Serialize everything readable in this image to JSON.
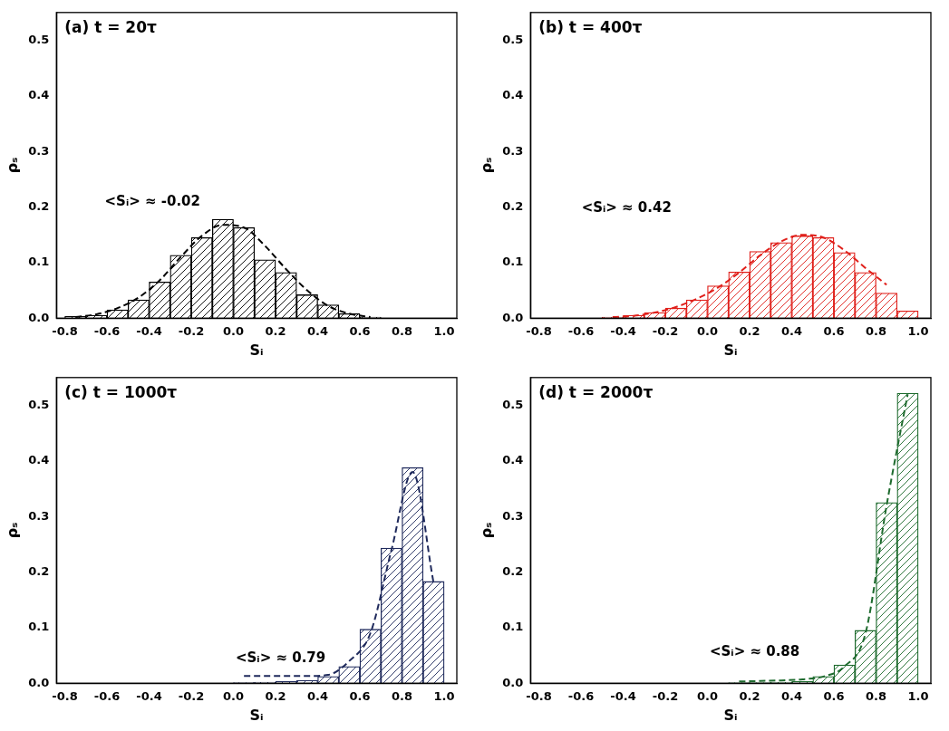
{
  "chart_data": [
    {
      "type": "histogram",
      "title": "(a) t = 20τ",
      "x_label": "Sᵢ",
      "y_label": "ρₛ",
      "annotation": "<Sᵢ> ≈ -0.02",
      "color": "#000000",
      "grid": false,
      "xlim": [
        -0.84,
        1.06
      ],
      "xticks": [
        -0.8,
        -0.6,
        -0.4,
        -0.2,
        {
          "value": 0,
          "label": "0.0"
        },
        0.2,
        0.4,
        0.6,
        0.8,
        {
          "value": 1,
          "label": "1.0"
        }
      ],
      "ylim": [
        0,
        0.55
      ],
      "yticks": [
        {
          "value": 0,
          "label": "0.0"
        },
        0.1,
        0.2,
        0.3,
        0.4,
        0.5
      ],
      "bins": [
        -0.8,
        -0.7,
        -0.6,
        -0.5,
        -0.4,
        -0.3,
        -0.2,
        -0.1,
        0.0,
        0.1,
        0.2,
        0.3,
        0.4,
        0.5,
        0.6,
        0.7
      ],
      "values": [
        0.003,
        0.005,
        0.015,
        0.033,
        0.065,
        0.113,
        0.145,
        0.178,
        0.163,
        0.105,
        0.082,
        0.042,
        0.024,
        0.008,
        0.002
      ],
      "fit": {
        "line_style": "dashed",
        "x": [
          -0.75,
          -0.65,
          -0.55,
          -0.45,
          -0.35,
          -0.25,
          -0.15,
          -0.05,
          0.05,
          0.15,
          0.25,
          0.35,
          0.45,
          0.55,
          0.65
        ],
        "values": [
          0.002,
          0.007,
          0.018,
          0.037,
          0.068,
          0.11,
          0.148,
          0.168,
          0.163,
          0.13,
          0.088,
          0.05,
          0.022,
          0.008,
          0.002
        ]
      }
    },
    {
      "type": "histogram",
      "title": "(b) t = 400τ",
      "x_label": "Sᵢ",
      "y_label": "ρₛ",
      "annotation": "<Sᵢ> ≈ 0.42",
      "color": "#e0201b",
      "grid": false,
      "xlim": [
        -0.84,
        1.06
      ],
      "xticks": [
        -0.8,
        -0.6,
        -0.4,
        -0.2,
        {
          "value": 0,
          "label": "0.0"
        },
        0.2,
        0.4,
        0.6,
        0.8,
        {
          "value": 1,
          "label": "1.0"
        }
      ],
      "ylim": [
        0,
        0.55
      ],
      "yticks": [
        {
          "value": 0,
          "label": "0.0"
        },
        0.1,
        0.2,
        0.3,
        0.4,
        0.5
      ],
      "bins": [
        -0.5,
        -0.4,
        -0.3,
        -0.2,
        -0.1,
        0.0,
        0.1,
        0.2,
        0.3,
        0.4,
        0.5,
        0.6,
        0.7,
        0.8,
        0.9,
        1.0
      ],
      "values": [
        0.002,
        0.005,
        0.01,
        0.018,
        0.033,
        0.058,
        0.083,
        0.12,
        0.136,
        0.148,
        0.145,
        0.118,
        0.082,
        0.045,
        0.013
      ],
      "fit": {
        "line_style": "dashed",
        "x": [
          -0.45,
          -0.35,
          -0.25,
          -0.15,
          -0.05,
          0.05,
          0.15,
          0.25,
          0.35,
          0.45,
          0.55,
          0.65,
          0.75,
          0.85
        ],
        "values": [
          0.002,
          0.004,
          0.01,
          0.02,
          0.035,
          0.055,
          0.082,
          0.113,
          0.138,
          0.15,
          0.145,
          0.122,
          0.09,
          0.06
        ]
      }
    },
    {
      "type": "histogram",
      "title": "(c) t = 1000τ",
      "x_label": "Sᵢ",
      "y_label": "ρₛ",
      "annotation": "<Sᵢ> ≈ 0.79",
      "color": "#1f2a5c",
      "grid": false,
      "xlim": [
        -0.84,
        1.06
      ],
      "xticks": [
        -0.8,
        -0.6,
        -0.4,
        -0.2,
        {
          "value": 0,
          "label": "0.0"
        },
        0.2,
        0.4,
        0.6,
        0.8,
        {
          "value": 1,
          "label": "1.0"
        }
      ],
      "ylim": [
        0,
        0.55
      ],
      "yticks": [
        {
          "value": 0,
          "label": "0.0"
        },
        0.1,
        0.2,
        0.3,
        0.4,
        0.5
      ],
      "bins": [
        0.0,
        0.1,
        0.2,
        0.3,
        0.4,
        0.5,
        0.6,
        0.7,
        0.8,
        0.9,
        1.0
      ],
      "values": [
        0.001,
        0.002,
        0.003,
        0.005,
        0.012,
        0.03,
        0.097,
        0.243,
        0.388,
        0.183
      ],
      "fit": {
        "line_style": "dashed",
        "x": [
          0.05,
          0.15,
          0.25,
          0.35,
          0.45,
          0.55,
          0.65,
          0.75,
          0.85,
          0.95
        ],
        "values": [
          0.013,
          0.013,
          0.013,
          0.013,
          0.015,
          0.04,
          0.09,
          0.24,
          0.38,
          0.18
        ]
      }
    },
    {
      "type": "histogram",
      "title": "(d) t = 2000τ",
      "x_label": "Sᵢ",
      "y_label": "ρₛ",
      "annotation": "<Sᵢ> ≈ 0.88",
      "color": "#1e6b2e",
      "grid": false,
      "xlim": [
        -0.84,
        1.06
      ],
      "xticks": [
        -0.8,
        -0.6,
        -0.4,
        -0.2,
        {
          "value": 0,
          "label": "0.0"
        },
        0.2,
        0.4,
        0.6,
        0.8,
        {
          "value": 1,
          "label": "1.0"
        }
      ],
      "ylim": [
        0,
        0.55
      ],
      "yticks": [
        {
          "value": 0,
          "label": "0.0"
        },
        0.1,
        0.2,
        0.3,
        0.4,
        0.5
      ],
      "bins": [
        0.1,
        0.2,
        0.3,
        0.4,
        0.5,
        0.6,
        0.7,
        0.8,
        0.9,
        1.0
      ],
      "values": [
        0.001,
        0.001,
        0.002,
        0.003,
        0.012,
        0.033,
        0.095,
        0.325,
        0.522
      ],
      "fit": {
        "line_style": "dashed",
        "x": [
          0.15,
          0.25,
          0.35,
          0.45,
          0.55,
          0.65,
          0.75,
          0.85,
          0.95
        ],
        "values": [
          0.003,
          0.004,
          0.005,
          0.007,
          0.012,
          0.03,
          0.09,
          0.32,
          0.52
        ]
      }
    }
  ]
}
